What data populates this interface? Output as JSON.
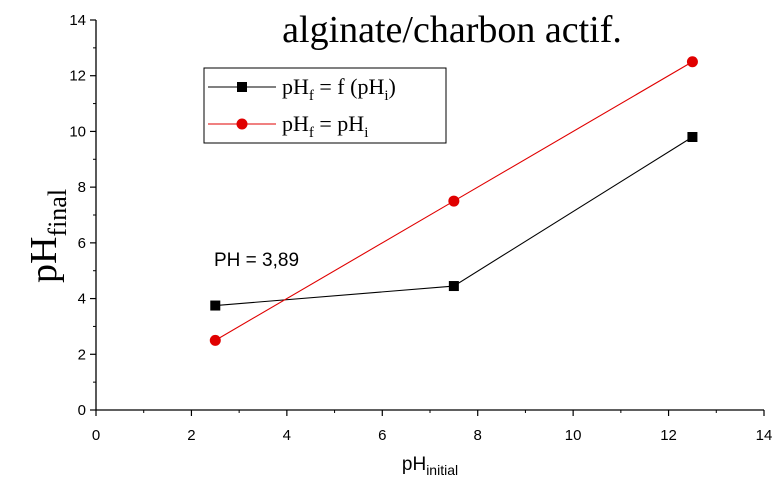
{
  "chart_data": {
    "type": "line",
    "title": "alginate/charbon actif.",
    "xlabel": {
      "main": "pH",
      "sub": "initial"
    },
    "ylabel": {
      "main": "pH",
      "sub": "final"
    },
    "xlim": [
      0,
      14
    ],
    "ylim": [
      0,
      14
    ],
    "xticks": [
      0,
      2,
      4,
      6,
      8,
      10,
      12,
      14
    ],
    "yticks": [
      0,
      2,
      4,
      6,
      8,
      10,
      12,
      14
    ],
    "grid": false,
    "legend_position": "top-left",
    "annotation": "PH = 3,89",
    "series": [
      {
        "legend": {
          "a": "pH",
          "a_sub": "f",
          "b": " = f (pH",
          "b_sub": "i",
          "c": ")"
        },
        "color": "#000000",
        "marker": "square",
        "x": [
          2.5,
          7.5,
          12.5
        ],
        "y": [
          3.75,
          4.45,
          9.8
        ]
      },
      {
        "legend": {
          "a": "pH",
          "a_sub": "f",
          "b": " = pH",
          "b_sub": "i",
          "c": ""
        },
        "color": "#e00000",
        "marker": "circle",
        "x": [
          2.5,
          7.5,
          12.5
        ],
        "y": [
          2.5,
          7.5,
          12.5
        ]
      }
    ]
  }
}
